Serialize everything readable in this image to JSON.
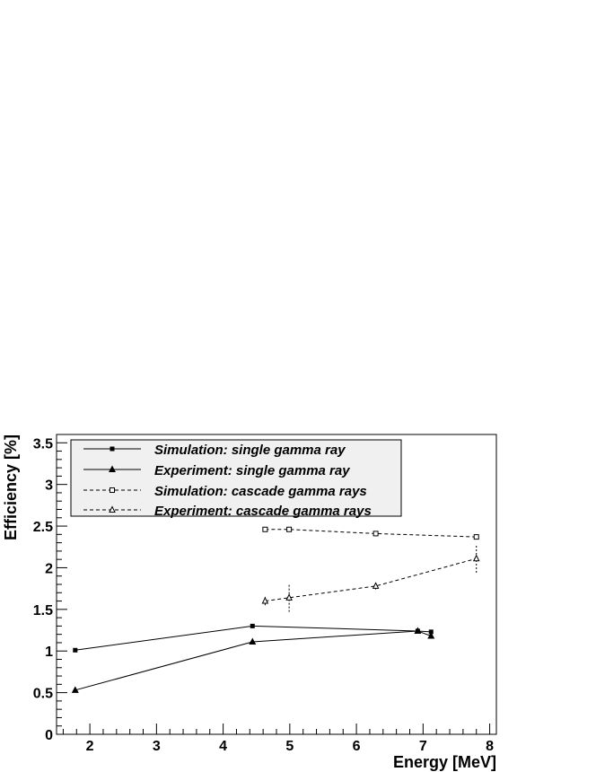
{
  "chart_data": {
    "type": "line",
    "title": "",
    "xlabel": "Energy [MeV]",
    "ylabel": "Efficiency [%]",
    "xlim": [
      1.5,
      8.1
    ],
    "ylim": [
      0,
      3.6
    ],
    "x_ticks": [
      2,
      3,
      4,
      5,
      6,
      7,
      8
    ],
    "x_tick_labels": [
      "2",
      "3",
      "4",
      "5",
      "6",
      "7",
      "8"
    ],
    "y_ticks": [
      0,
      0.5,
      1,
      1.5,
      2,
      2.5,
      3,
      3.5
    ],
    "y_tick_labels": [
      "0",
      "0.5",
      "1",
      "1.5",
      "2",
      "2.5",
      "3",
      "3.5"
    ],
    "grid": false,
    "legend_position": "top-left",
    "series": [
      {
        "name": "Simulation: single gamma ray",
        "marker": "filled-square",
        "line_style": "solid",
        "x": [
          1.78,
          4.44,
          6.92,
          7.12
        ],
        "y": [
          1.01,
          1.3,
          1.24,
          1.23
        ],
        "y_err": [
          0,
          0,
          0,
          0
        ]
      },
      {
        "name": "Experiment: single gamma ray",
        "marker": "filled-triangle",
        "line_style": "solid",
        "x": [
          1.78,
          4.44,
          6.92,
          7.12
        ],
        "y": [
          0.53,
          1.11,
          1.24,
          1.18
        ],
        "y_err": [
          0.01,
          0.03,
          0.02,
          0.02
        ]
      },
      {
        "name": "Simulation: cascade gamma rays",
        "marker": "open-square",
        "line_style": "dashed",
        "x": [
          4.63,
          4.99,
          6.29,
          7.8
        ],
        "y": [
          2.46,
          2.46,
          2.41,
          2.37
        ],
        "y_err": [
          0,
          0,
          0,
          0
        ]
      },
      {
        "name": "Experiment: cascade gamma rays",
        "marker": "open-triangle",
        "line_style": "dashed",
        "x": [
          4.63,
          4.99,
          6.29,
          7.8
        ],
        "y": [
          1.6,
          1.64,
          1.78,
          2.11
        ],
        "y_err": [
          0.05,
          0.17,
          0.04,
          0.17
        ]
      }
    ]
  }
}
